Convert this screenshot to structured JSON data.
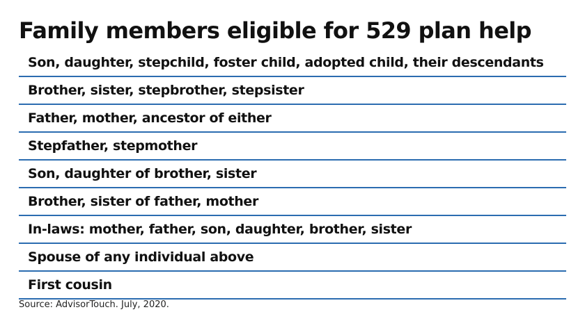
{
  "title": "Family members eligible for 529 plan help",
  "rows": [
    "Son, daughter, stepchild, foster child, adopted child, their descendants",
    "Brother, sister, stepbrother, stepsister",
    "Father, mother, ancestor of either",
    "Stepfather, stepmother",
    "Son, daughter of brother, sister",
    "Brother, sister of father, mother",
    "In-laws: mother, father, son, daughter, brother, sister",
    "Spouse of any individual above",
    "First cousin"
  ],
  "source": "Source: AdvisorTouch. July, 2020.",
  "colors": {
    "divider": "#2b6cb0",
    "text": "#111111"
  }
}
